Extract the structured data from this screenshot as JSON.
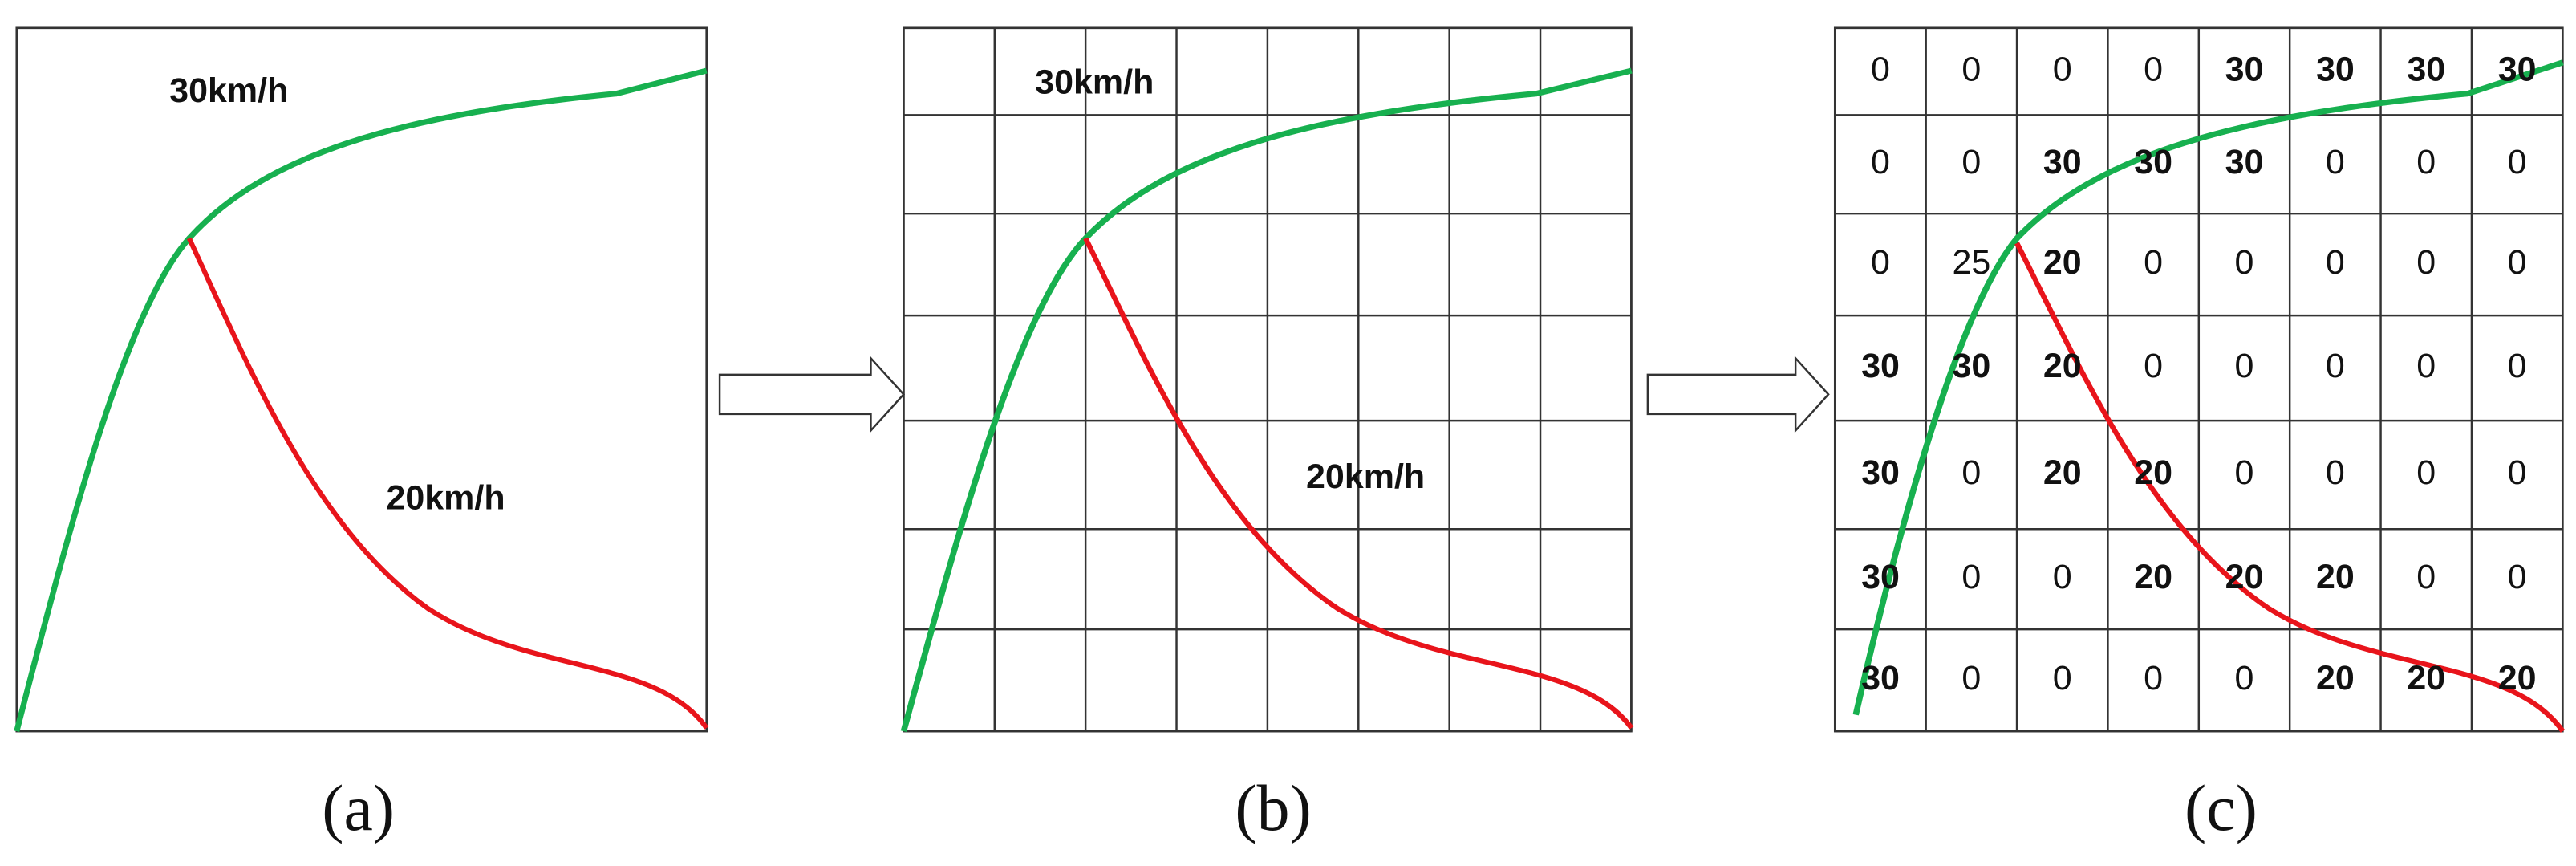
{
  "panels": [
    {
      "label": "(a)",
      "curve_labels": [
        "30km/h",
        "20km/h"
      ]
    },
    {
      "label": "(b)",
      "curve_labels": [
        "30km/h",
        "20km/h"
      ]
    },
    {
      "label": "(c)",
      "grid": [
        [
          0,
          0,
          0,
          0,
          30,
          30,
          30,
          30
        ],
        [
          0,
          0,
          30,
          30,
          30,
          0,
          0,
          0
        ],
        [
          0,
          25,
          20,
          0,
          0,
          0,
          0,
          0
        ],
        [
          30,
          30,
          20,
          0,
          0,
          0,
          0,
          0
        ],
        [
          30,
          0,
          20,
          20,
          0,
          0,
          0,
          0
        ],
        [
          30,
          0,
          0,
          20,
          20,
          20,
          0,
          0
        ],
        [
          30,
          0,
          0,
          0,
          0,
          20,
          20,
          20
        ]
      ],
      "highlight_cell": [
        2,
        1
      ],
      "highlight_color": "#e8141b"
    }
  ]
}
